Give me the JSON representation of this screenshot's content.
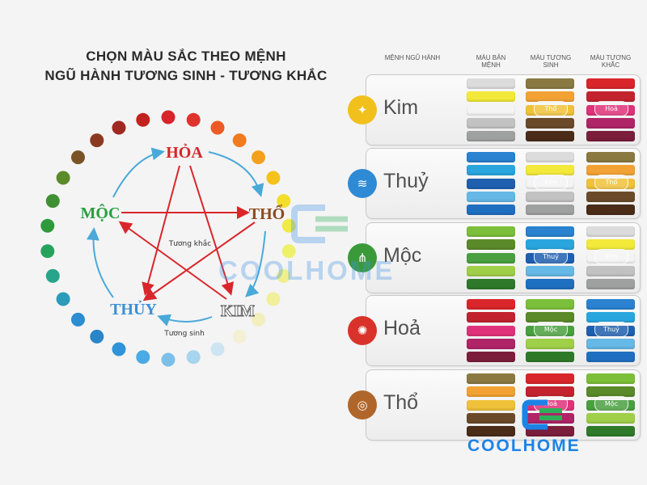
{
  "title": {
    "line1": "CHỌN MÀU SẮC THEO MỆNH",
    "line2": "NGŨ HÀNH TƯƠNG SINH - TƯƠNG KHẮC"
  },
  "cycle": {
    "elements": [
      {
        "key": "hoa",
        "label": "HỎA",
        "color": "#d6262b"
      },
      {
        "key": "tho",
        "label": "THỔ",
        "color": "#8b4a1e"
      },
      {
        "key": "kim",
        "label": "KIM",
        "color": "#ffffff"
      },
      {
        "key": "thuy",
        "label": "THỦY",
        "color": "#3a8fd8"
      },
      {
        "key": "moc",
        "label": "MỘC",
        "color": "#2aa040"
      }
    ],
    "tuong_sinh_label": "Tương sinh",
    "tuong_khac_label": "Tương khắc",
    "arrow_colors": {
      "sinh": "#4aa9d9",
      "khac": "#d9262b"
    },
    "ring_colors": [
      "#d8232a",
      "#e0322c",
      "#ec5a25",
      "#f07c1f",
      "#f5a01c",
      "#f5c21c",
      "#f3de2c",
      "#f1e94a",
      "#eef06a",
      "#eff08c",
      "#f1ef9a",
      "#f2efbd",
      "#f4f0d6",
      "#cde5f3",
      "#a7d4ef",
      "#7cc0ea",
      "#4aaae3",
      "#2e94d7",
      "#2a84c8",
      "#2a8ed0",
      "#2a9bb8",
      "#27a48a",
      "#25a35c",
      "#2e9a3c",
      "#3f9032",
      "#5b8a2b",
      "#7a5426",
      "#8a3a21",
      "#a0291f",
      "#c0231f"
    ]
  },
  "table": {
    "headers": {
      "menh": "MỆNH NGŨ HÀNH",
      "ban_menh": "MÀU BẢN MỆNH",
      "tuong_sinh": "MÀU TƯƠNG SINH",
      "tuong_khac": "MÀU TƯƠNG KHẮC"
    },
    "rows": [
      {
        "name": "Kim",
        "icon": "kim-icon",
        "icon_color": "#f2c01d",
        "icon_glyph": "✦",
        "ban_menh": [
          "#dcdcdc",
          "#f2e93a",
          "#f4f4f4",
          "#c2c2c2",
          "#9fa0a0"
        ],
        "tuong_sinh": [
          "#8a7a42",
          "#f2a235",
          "#f0c23a",
          "#6b4a2a",
          "#4a2c18"
        ],
        "tuong_sinh_badge": "Thổ",
        "tuong_khac": [
          "#d9262b",
          "#c2232f",
          "#e0327a",
          "#b02468",
          "#7b1e3c"
        ],
        "tuong_khac_badge": "Hoả"
      },
      {
        "name": "Thuỷ",
        "icon": "thuy-icon",
        "icon_color": "#2f8ad6",
        "icon_glyph": "≋",
        "ban_menh": [
          "#2a82d0",
          "#29a6de",
          "#1f5fb0",
          "#66b8e6",
          "#1f6fc0"
        ],
        "tuong_sinh": [
          "#dcdcdc",
          "#f2e93a",
          "#f4f4f4",
          "#c2c2c2",
          "#9fa0a0"
        ],
        "tuong_sinh_badge": "Kim",
        "tuong_khac": [
          "#8a7a42",
          "#f2a235",
          "#f0c23a",
          "#6b4a2a",
          "#4a2c18"
        ],
        "tuong_khac_badge": "Thổ"
      },
      {
        "name": "Mộc",
        "icon": "moc-icon",
        "icon_color": "#3a9a3a",
        "icon_glyph": "⋔",
        "ban_menh": [
          "#7cbf3a",
          "#5a8a2a",
          "#4aa040",
          "#a0cf4a",
          "#2f7a2a"
        ],
        "tuong_sinh": [
          "#2a82d0",
          "#29a6de",
          "#1f5fb0",
          "#66b8e6",
          "#1f6fc0"
        ],
        "tuong_sinh_badge": "Thuỷ",
        "tuong_khac": [
          "#dcdcdc",
          "#f2e93a",
          "#f4f4f4",
          "#c2c2c2",
          "#9fa0a0"
        ],
        "tuong_khac_badge": "Kim"
      },
      {
        "name": "Hoả",
        "icon": "hoa-icon",
        "icon_color": "#d9322a",
        "icon_glyph": "✺",
        "ban_menh": [
          "#d9262b",
          "#c2232f",
          "#e0327a",
          "#b02468",
          "#7b1e3c"
        ],
        "tuong_sinh": [
          "#7cbf3a",
          "#5a8a2a",
          "#4aa040",
          "#a0cf4a",
          "#2f7a2a"
        ],
        "tuong_sinh_badge": "Mộc",
        "tuong_khac": [
          "#2a82d0",
          "#29a6de",
          "#1f5fb0",
          "#66b8e6",
          "#1f6fc0"
        ],
        "tuong_khac_badge": "Thuỷ"
      },
      {
        "name": "Thổ",
        "icon": "tho-icon",
        "icon_color": "#b0662a",
        "icon_glyph": "◎",
        "ban_menh": [
          "#8a7a42",
          "#f2a235",
          "#f0c23a",
          "#6b4a2a",
          "#4a2c18"
        ],
        "tuong_sinh": [
          "#d9262b",
          "#c2232f",
          "#e0327a",
          "#b02468",
          "#7b1e3c"
        ],
        "tuong_sinh_badge": "Hoả",
        "tuong_khac": [
          "#7cbf3a",
          "#5a8a2a",
          "#4aa040",
          "#a0cf4a",
          "#2f7a2a"
        ],
        "tuong_khac_badge": "Mộc"
      }
    ]
  },
  "watermark": {
    "text": "COOLHOME",
    "brand_blue": "#1d83e6",
    "brand_green": "#2fae5a"
  }
}
